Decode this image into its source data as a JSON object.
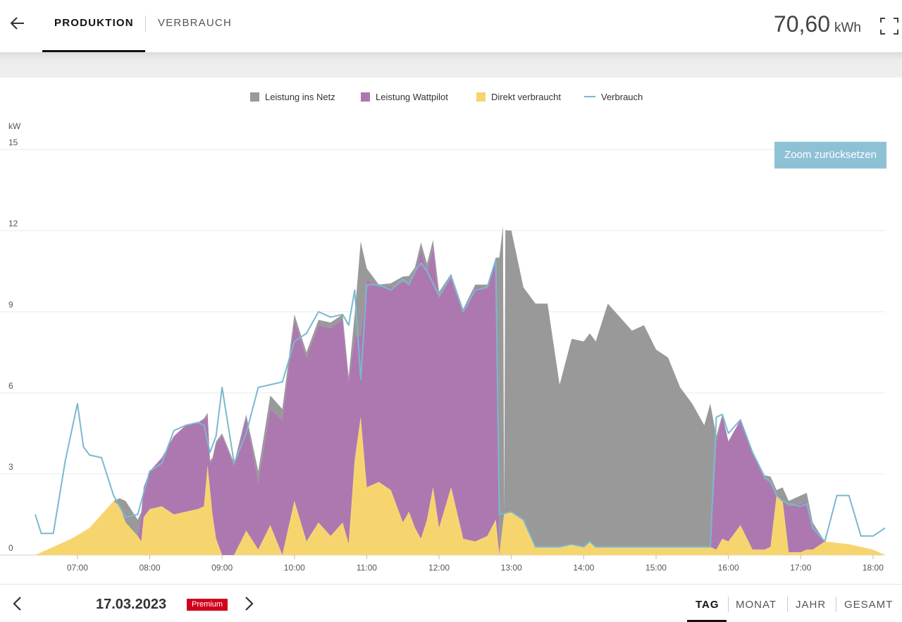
{
  "header": {
    "tabs": [
      {
        "label": "PRODUKTION",
        "active": true
      },
      {
        "label": "VERBRAUCH",
        "active": false
      }
    ],
    "total_value": "70,60",
    "total_unit": "kWh",
    "back_icon": "arrow-left-icon",
    "fullscreen_icon": "fullscreen-icon"
  },
  "zoom_button": "Zoom zurücksetzen",
  "footer": {
    "date": "17.03.2023",
    "badge": "Premium",
    "periods": [
      "TAG",
      "MONAT",
      "JAHR",
      "GESAMT"
    ],
    "active_period": "TAG"
  },
  "chart_data": {
    "type": "area",
    "ylabel": "kW",
    "ylim": [
      0,
      15
    ],
    "yticks": [
      "15",
      "12",
      "9",
      "6",
      "3",
      "0"
    ],
    "xlim": [
      "06:25",
      "18:10"
    ],
    "xticks": [
      "07:00",
      "08:00",
      "09:00",
      "10:00",
      "11:00",
      "12:00",
      "13:00",
      "14:00",
      "15:00",
      "16:00",
      "17:00",
      "18:00"
    ],
    "legend_position": "top-center",
    "grid": "horizontal",
    "stacking": "normal",
    "series": [
      {
        "name": "Leistung ins Netz",
        "type": "area",
        "color": "#999999",
        "points": [
          [
            "06:25",
            0
          ],
          [
            "07:30",
            0
          ],
          [
            "07:35",
            0.3
          ],
          [
            "07:40",
            0.8
          ],
          [
            "07:50",
            0.6
          ],
          [
            "07:53",
            0.1
          ],
          [
            "07:55",
            0
          ],
          [
            "08:40",
            0
          ],
          [
            "08:50",
            0.1
          ],
          [
            "09:10",
            0.1
          ],
          [
            "09:20",
            0.1
          ],
          [
            "09:30",
            0.4
          ],
          [
            "09:40",
            0.5
          ],
          [
            "09:50",
            0.4
          ],
          [
            "10:00",
            0.2
          ],
          [
            "10:30",
            0.2
          ],
          [
            "10:40",
            0.2
          ],
          [
            "10:45",
            0.2
          ],
          [
            "10:50",
            0.8
          ],
          [
            "10:55",
            3.5
          ],
          [
            "11:00",
            0.4
          ],
          [
            "11:10",
            0.1
          ],
          [
            "11:30",
            0.2
          ],
          [
            "11:55",
            0.3
          ],
          [
            "12:10",
            0.1
          ],
          [
            "12:40",
            0.1
          ],
          [
            "12:47",
            0.1
          ],
          [
            "12:50",
            10.9
          ],
          [
            "12:53",
            11.0
          ],
          [
            "12:54",
            0
          ],
          [
            "12:55",
            10.5
          ],
          [
            "13:00",
            10.4
          ],
          [
            "13:10",
            8.6
          ],
          [
            "13:20",
            9.0
          ],
          [
            "13:30",
            9.0
          ],
          [
            "13:40",
            6.0
          ],
          [
            "13:50",
            7.6
          ],
          [
            "14:00",
            7.6
          ],
          [
            "14:05",
            7.7
          ],
          [
            "14:10",
            7.6
          ],
          [
            "14:20",
            9.0
          ],
          [
            "14:30",
            8.5
          ],
          [
            "14:40",
            8.0
          ],
          [
            "14:50",
            8.2
          ],
          [
            "15:00",
            7.3
          ],
          [
            "15:10",
            7.0
          ],
          [
            "15:20",
            5.9
          ],
          [
            "15:30",
            5.3
          ],
          [
            "15:40",
            4.5
          ],
          [
            "15:45",
            5.3
          ],
          [
            "15:50",
            0.3
          ],
          [
            "15:55",
            0
          ],
          [
            "16:15",
            0
          ],
          [
            "16:35",
            0.2
          ],
          [
            "16:40",
            0.2
          ],
          [
            "16:45",
            0.5
          ],
          [
            "16:50",
            0.2
          ],
          [
            "17:00",
            0.3
          ],
          [
            "17:05",
            0.3
          ],
          [
            "17:10",
            0.2
          ],
          [
            "17:20",
            0
          ],
          [
            "18:10",
            0
          ]
        ]
      },
      {
        "name": "Leistung Wattpilot",
        "type": "area",
        "color": "#ad78b0",
        "points": [
          [
            "06:25",
            0
          ],
          [
            "07:30",
            0
          ],
          [
            "07:40",
            0
          ],
          [
            "07:50",
            0
          ],
          [
            "07:53",
            1.0
          ],
          [
            "08:00",
            1.4
          ],
          [
            "08:10",
            1.8
          ],
          [
            "08:20",
            2.9
          ],
          [
            "08:30",
            3.2
          ],
          [
            "08:40",
            3.2
          ],
          [
            "08:45",
            3.2
          ],
          [
            "08:50",
            1.0
          ],
          [
            "08:55",
            3.5
          ],
          [
            "09:00",
            4.4
          ],
          [
            "09:10",
            3.3
          ],
          [
            "09:20",
            4.2
          ],
          [
            "09:30",
            2.5
          ],
          [
            "09:40",
            4.3
          ],
          [
            "09:50",
            5.0
          ],
          [
            "10:00",
            6.7
          ],
          [
            "10:10",
            6.8
          ],
          [
            "10:20",
            7.3
          ],
          [
            "10:30",
            7.7
          ],
          [
            "10:40",
            7.5
          ],
          [
            "10:45",
            6.0
          ],
          [
            "10:50",
            4.6
          ],
          [
            "10:55",
            3.0
          ],
          [
            "11:00",
            7.7
          ],
          [
            "11:10",
            7.2
          ],
          [
            "11:20",
            7.5
          ],
          [
            "11:30",
            8.9
          ],
          [
            "11:35",
            8.5
          ],
          [
            "11:40",
            9.4
          ],
          [
            "11:45",
            10.7
          ],
          [
            "11:50",
            9.2
          ],
          [
            "12:00",
            8.5
          ],
          [
            "12:10",
            7.8
          ],
          [
            "12:20",
            8.4
          ],
          [
            "12:30",
            9.4
          ],
          [
            "12:40",
            9.2
          ],
          [
            "12:47",
            9.6
          ],
          [
            "12:50",
            0.1
          ],
          [
            "12:55",
            0
          ],
          [
            "13:00",
            0
          ],
          [
            "15:45",
            0
          ],
          [
            "15:50",
            3.9
          ],
          [
            "15:55",
            4.6
          ],
          [
            "16:00",
            3.7
          ],
          [
            "16:10",
            3.9
          ],
          [
            "16:20",
            3.6
          ],
          [
            "16:30",
            2.6
          ],
          [
            "16:35",
            2.4
          ],
          [
            "16:40",
            0
          ],
          [
            "16:45",
            0
          ],
          [
            "16:50",
            1.7
          ],
          [
            "17:00",
            1.8
          ],
          [
            "17:05",
            1.8
          ],
          [
            "17:10",
            0.8
          ],
          [
            "17:20",
            0
          ],
          [
            "18:10",
            0
          ]
        ]
      },
      {
        "name": "Direkt verbraucht",
        "type": "area",
        "color": "#f7d56e",
        "points": [
          [
            "06:25",
            0
          ],
          [
            "06:40",
            0.3
          ],
          [
            "06:55",
            0.6
          ],
          [
            "07:10",
            1.0
          ],
          [
            "07:20",
            1.5
          ],
          [
            "07:30",
            2.0
          ],
          [
            "07:35",
            1.8
          ],
          [
            "07:40",
            1.2
          ],
          [
            "07:50",
            0.7
          ],
          [
            "07:53",
            0.5
          ],
          [
            "07:55",
            1.4
          ],
          [
            "08:00",
            1.7
          ],
          [
            "08:10",
            1.8
          ],
          [
            "08:20",
            1.5
          ],
          [
            "08:30",
            1.6
          ],
          [
            "08:40",
            1.7
          ],
          [
            "08:45",
            1.8
          ],
          [
            "08:48",
            3.3
          ],
          [
            "08:52",
            1.5
          ],
          [
            "08:55",
            0.6
          ],
          [
            "09:00",
            0
          ],
          [
            "09:10",
            0
          ],
          [
            "09:20",
            0.9
          ],
          [
            "09:30",
            0.2
          ],
          [
            "09:40",
            1.1
          ],
          [
            "09:50",
            0
          ],
          [
            "10:00",
            2.0
          ],
          [
            "10:10",
            0.5
          ],
          [
            "10:20",
            1.2
          ],
          [
            "10:30",
            0.7
          ],
          [
            "10:40",
            1.2
          ],
          [
            "10:45",
            0.4
          ],
          [
            "10:50",
            3.5
          ],
          [
            "10:55",
            5.1
          ],
          [
            "11:00",
            2.5
          ],
          [
            "11:10",
            2.7
          ],
          [
            "11:20",
            2.4
          ],
          [
            "11:30",
            1.2
          ],
          [
            "11:35",
            1.6
          ],
          [
            "11:40",
            1.0
          ],
          [
            "11:45",
            0.6
          ],
          [
            "11:50",
            1.3
          ],
          [
            "11:55",
            2.5
          ],
          [
            "12:00",
            1.0
          ],
          [
            "12:10",
            2.5
          ],
          [
            "12:20",
            0.6
          ],
          [
            "12:30",
            0.5
          ],
          [
            "12:40",
            0.7
          ],
          [
            "12:47",
            1.3
          ],
          [
            "12:50",
            0
          ],
          [
            "12:54",
            1.5
          ],
          [
            "13:00",
            1.6
          ],
          [
            "13:10",
            1.3
          ],
          [
            "13:20",
            0.3
          ],
          [
            "13:30",
            0.3
          ],
          [
            "13:40",
            0.3
          ],
          [
            "13:50",
            0.4
          ],
          [
            "14:00",
            0.3
          ],
          [
            "14:05",
            0.5
          ],
          [
            "14:10",
            0.3
          ],
          [
            "14:20",
            0.3
          ],
          [
            "14:30",
            0.3
          ],
          [
            "14:40",
            0.3
          ],
          [
            "14:50",
            0.3
          ],
          [
            "15:00",
            0.3
          ],
          [
            "15:10",
            0.3
          ],
          [
            "15:20",
            0.3
          ],
          [
            "15:30",
            0.3
          ],
          [
            "15:40",
            0.3
          ],
          [
            "15:45",
            0.3
          ],
          [
            "15:50",
            0.2
          ],
          [
            "15:55",
            0.6
          ],
          [
            "16:00",
            0.5
          ],
          [
            "16:10",
            1.1
          ],
          [
            "16:20",
            0.2
          ],
          [
            "16:30",
            0.2
          ],
          [
            "16:35",
            0.3
          ],
          [
            "16:40",
            2.2
          ],
          [
            "16:45",
            2.0
          ],
          [
            "16:50",
            0.1
          ],
          [
            "17:00",
            0.1
          ],
          [
            "17:05",
            0.2
          ],
          [
            "17:10",
            0.2
          ],
          [
            "17:20",
            0.5
          ],
          [
            "17:40",
            0.4
          ],
          [
            "18:00",
            0.2
          ],
          [
            "18:10",
            0
          ]
        ]
      },
      {
        "name": "Verbrauch",
        "type": "line",
        "color": "#7ab8d0",
        "points": [
          [
            "06:25",
            1.5
          ],
          [
            "06:30",
            0.8
          ],
          [
            "06:40",
            0.8
          ],
          [
            "06:50",
            3.5
          ],
          [
            "07:00",
            5.6
          ],
          [
            "07:05",
            4.0
          ],
          [
            "07:10",
            3.7
          ],
          [
            "07:20",
            3.6
          ],
          [
            "07:30",
            2.2
          ],
          [
            "07:35",
            1.8
          ],
          [
            "07:40",
            1.4
          ],
          [
            "07:50",
            1.5
          ],
          [
            "08:00",
            3.1
          ],
          [
            "08:10",
            3.4
          ],
          [
            "08:20",
            4.6
          ],
          [
            "08:30",
            4.8
          ],
          [
            "08:40",
            4.9
          ],
          [
            "08:45",
            4.8
          ],
          [
            "08:50",
            3.8
          ],
          [
            "08:55",
            4.4
          ],
          [
            "09:00",
            6.2
          ],
          [
            "09:10",
            3.4
          ],
          [
            "09:20",
            4.5
          ],
          [
            "09:30",
            6.2
          ],
          [
            "09:40",
            6.3
          ],
          [
            "09:50",
            6.4
          ],
          [
            "10:00",
            7.9
          ],
          [
            "10:10",
            8.2
          ],
          [
            "10:20",
            9.0
          ],
          [
            "10:30",
            8.8
          ],
          [
            "10:40",
            8.9
          ],
          [
            "10:45",
            8.5
          ],
          [
            "10:50",
            9.8
          ],
          [
            "10:55",
            6.5
          ],
          [
            "11:00",
            10.0
          ],
          [
            "11:10",
            10.0
          ],
          [
            "11:20",
            9.8
          ],
          [
            "11:30",
            10.2
          ],
          [
            "11:35",
            10.0
          ],
          [
            "11:40",
            10.5
          ],
          [
            "11:45",
            10.8
          ],
          [
            "11:50",
            10.5
          ],
          [
            "12:00",
            9.6
          ],
          [
            "12:10",
            10.3
          ],
          [
            "12:20",
            9.0
          ],
          [
            "12:30",
            9.8
          ],
          [
            "12:40",
            9.9
          ],
          [
            "12:47",
            10.9
          ],
          [
            "12:50",
            1.5
          ],
          [
            "13:00",
            1.6
          ],
          [
            "13:10",
            1.3
          ],
          [
            "13:20",
            0.3
          ],
          [
            "13:30",
            0.3
          ],
          [
            "13:40",
            0.3
          ],
          [
            "13:50",
            0.4
          ],
          [
            "14:00",
            0.3
          ],
          [
            "14:05",
            0.5
          ],
          [
            "14:10",
            0.3
          ],
          [
            "14:20",
            0.3
          ],
          [
            "14:30",
            0.3
          ],
          [
            "14:40",
            0.3
          ],
          [
            "14:50",
            0.3
          ],
          [
            "15:00",
            0.3
          ],
          [
            "15:10",
            0.3
          ],
          [
            "15:20",
            0.3
          ],
          [
            "15:30",
            0.3
          ],
          [
            "15:40",
            0.3
          ],
          [
            "15:45",
            0.3
          ],
          [
            "15:50",
            5.1
          ],
          [
            "15:55",
            5.2
          ],
          [
            "16:00",
            4.5
          ],
          [
            "16:10",
            5.0
          ],
          [
            "16:20",
            3.8
          ],
          [
            "16:30",
            2.9
          ],
          [
            "16:35",
            2.7
          ],
          [
            "16:40",
            2.2
          ],
          [
            "16:45",
            2.0
          ],
          [
            "16:50",
            1.9
          ],
          [
            "17:00",
            1.8
          ],
          [
            "17:05",
            1.9
          ],
          [
            "17:10",
            1.0
          ],
          [
            "17:20",
            0.5
          ],
          [
            "17:30",
            2.2
          ],
          [
            "17:40",
            2.2
          ],
          [
            "17:50",
            0.7
          ],
          [
            "18:00",
            0.7
          ],
          [
            "18:10",
            1.0
          ]
        ]
      }
    ]
  }
}
